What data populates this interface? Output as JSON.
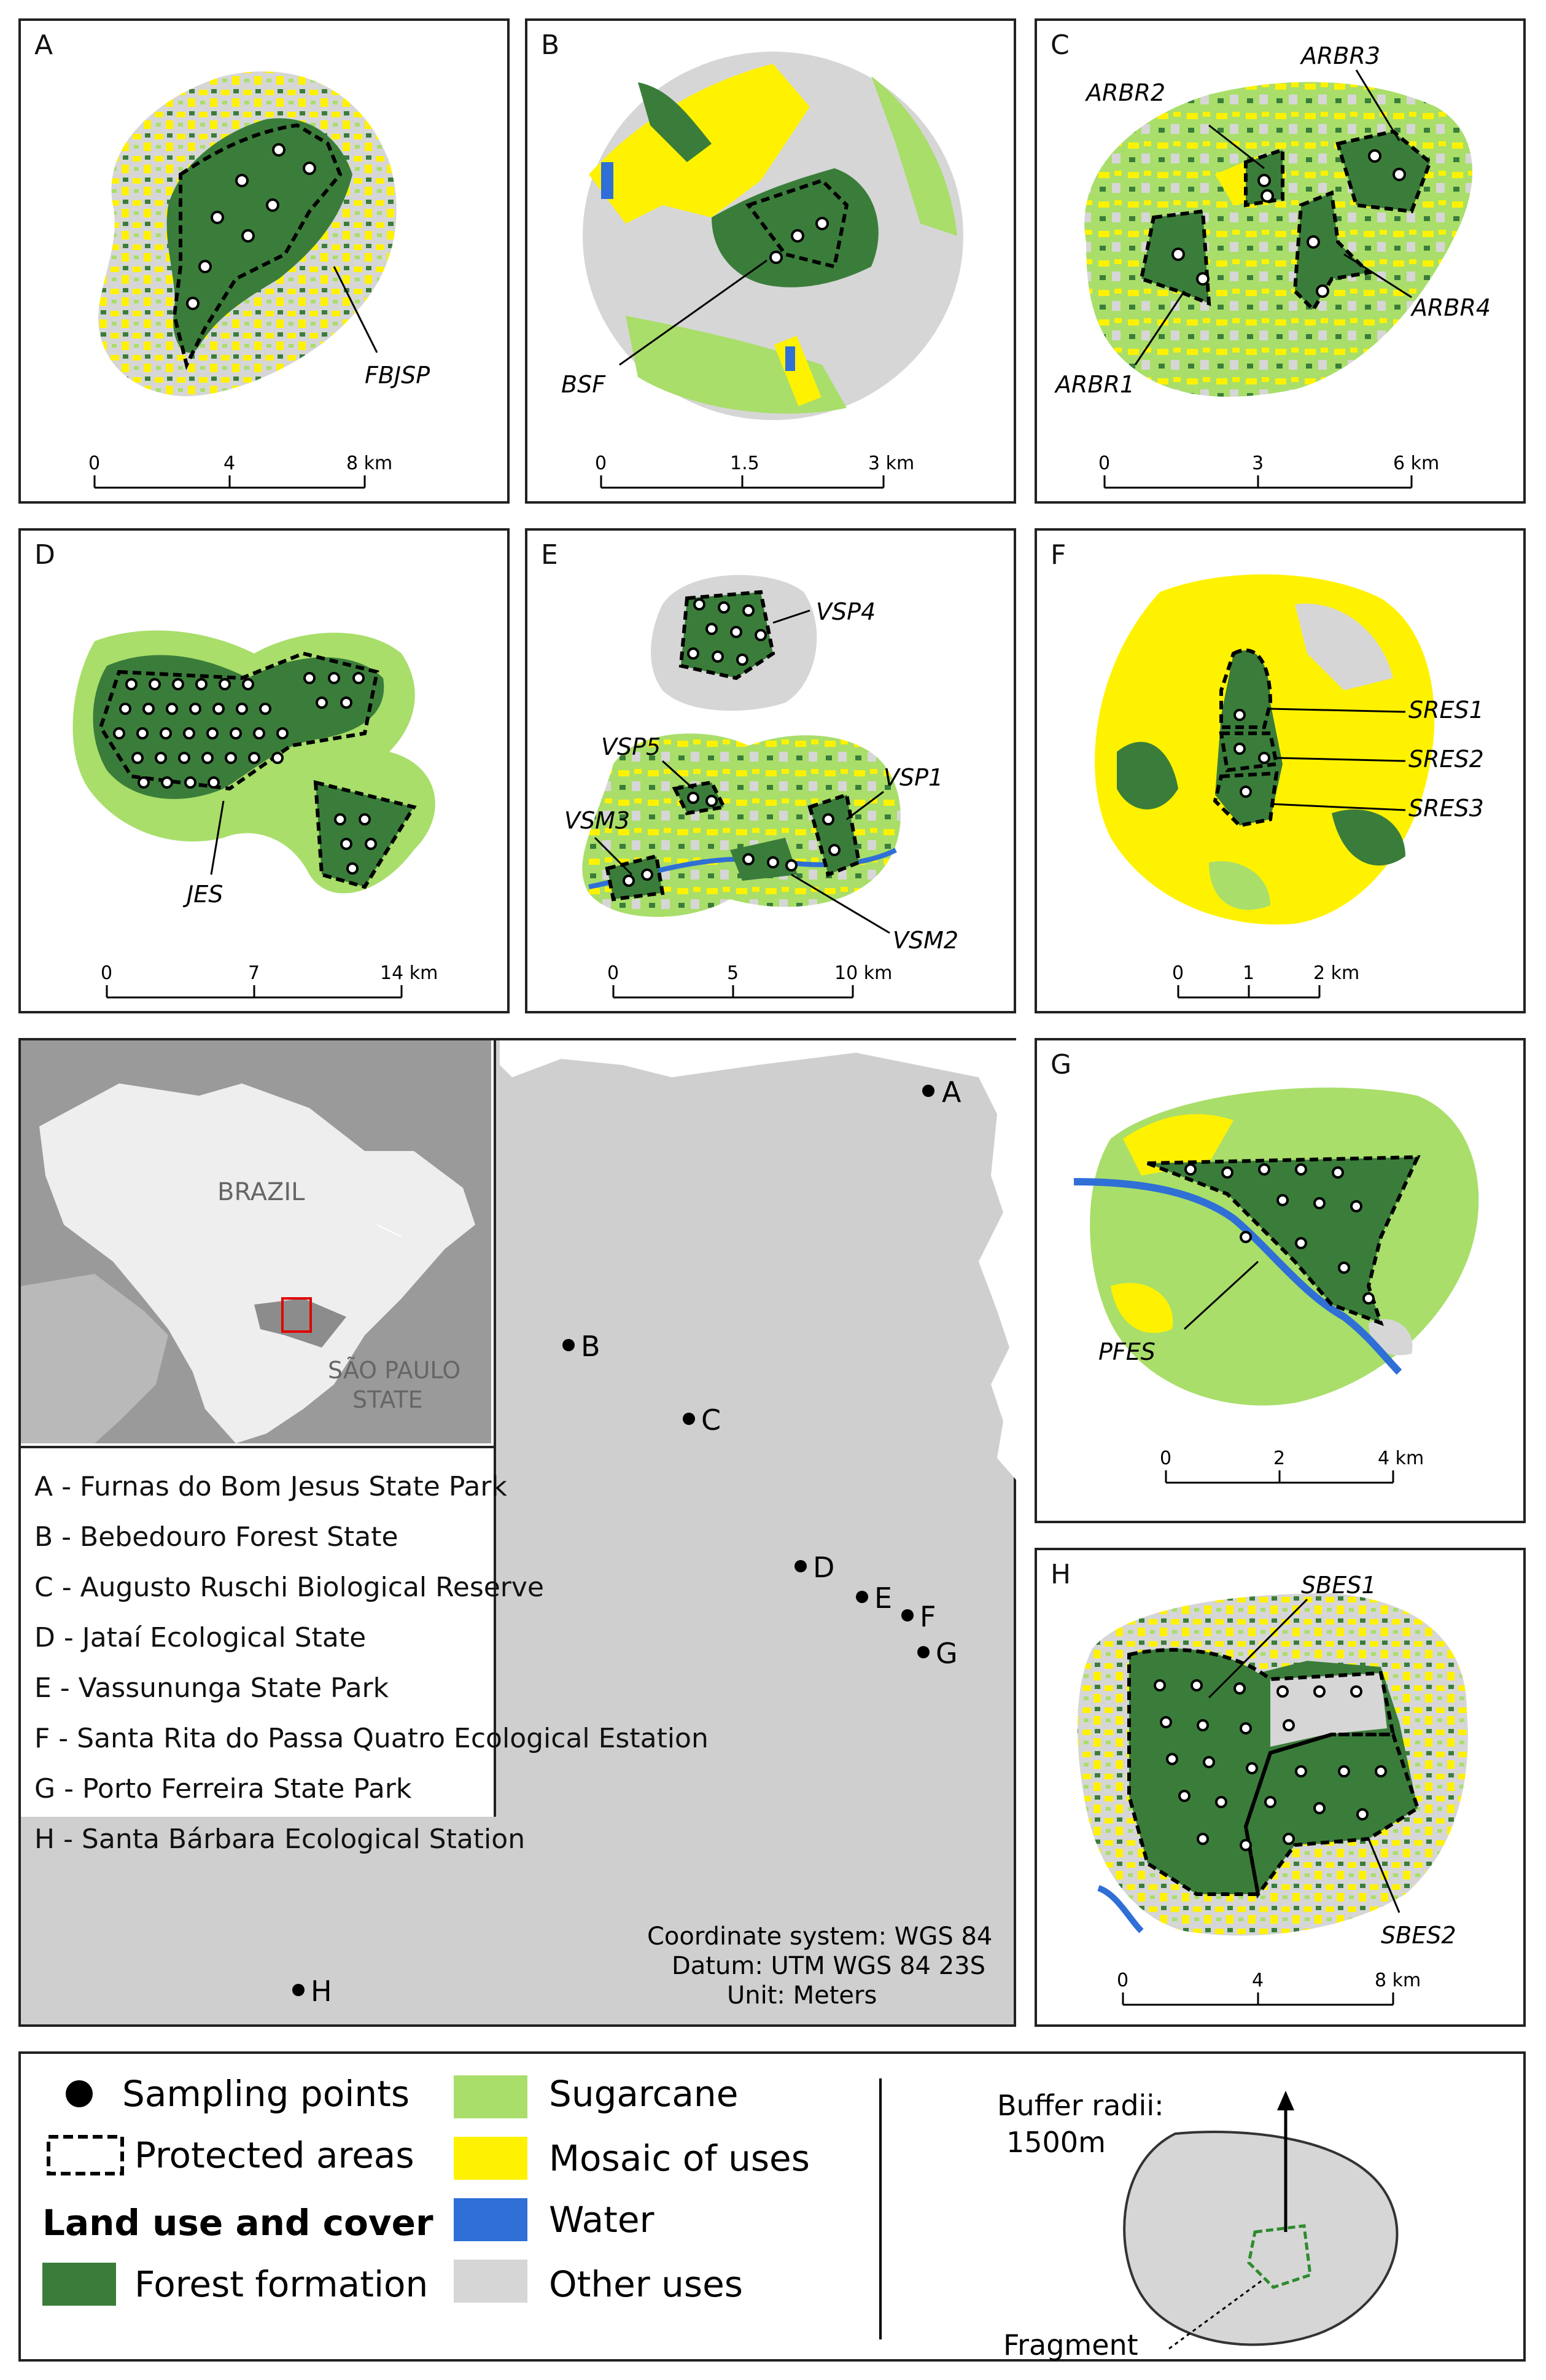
{
  "panels": {
    "A": {
      "letter": "A",
      "names": [
        "FBJSP"
      ],
      "scale": [
        "0",
        "4",
        "8 km"
      ]
    },
    "B": {
      "letter": "B",
      "names": [
        "BSF"
      ],
      "scale": [
        "0",
        "1.5",
        "3 km"
      ]
    },
    "C": {
      "letter": "C",
      "names": [
        "ARBR3",
        "ARBR2",
        "ARBR4",
        "ARBR1"
      ],
      "scale": [
        "0",
        "3",
        "6 km"
      ]
    },
    "D": {
      "letter": "D",
      "names": [
        "JES"
      ],
      "scale": [
        "0",
        "7",
        "14 km"
      ]
    },
    "E": {
      "letter": "E",
      "names": [
        "VSP4",
        "VSP5",
        "VSP1",
        "VSM3",
        "VSM2"
      ],
      "scale": [
        "0",
        "5",
        "10 km"
      ]
    },
    "F": {
      "letter": "F",
      "names": [
        "SRES1",
        "SRES2",
        "SRES3"
      ],
      "scale": [
        "0",
        "1",
        "2 km"
      ]
    },
    "G": {
      "letter": "G",
      "names": [
        "PFES"
      ],
      "scale": [
        "0",
        "2",
        "4 km"
      ]
    },
    "H": {
      "letter": "H",
      "names": [
        "SBES1",
        "SBES2"
      ],
      "scale": [
        "0",
        "4",
        "8 km"
      ]
    }
  },
  "overview": {
    "inset": {
      "country": "BRAZIL",
      "state_line1": "SÃO PAULO",
      "state_line2": "STATE"
    },
    "sites": [
      {
        "code": "A",
        "name": "A - Furnas do Bom Jesus State Park"
      },
      {
        "code": "B",
        "name": "B - Bebedouro Forest State"
      },
      {
        "code": "C",
        "name": "C - Augusto Ruschi Biological Reserve"
      },
      {
        "code": "D",
        "name": "D - Jataí Ecological State"
      },
      {
        "code": "E",
        "name": "E - Vassununga State Park"
      },
      {
        "code": "F",
        "name": "F - Santa Rita do Passa Quatro Ecological Estation"
      },
      {
        "code": "G",
        "name": "G - Porto Ferreira State Park"
      },
      {
        "code": "H",
        "name": "H - Santa Bárbara Ecological Station"
      }
    ],
    "crs": [
      "Coordinate system: WGS 84",
      "Datum: UTM WGS 84 23S",
      "Unit: Meters"
    ]
  },
  "legend": {
    "sampling_points": "Sampling points",
    "protected_areas": "Protected areas",
    "land_use_title": "Land use and cover",
    "forest": "Forest formation",
    "sugarcane": "Sugarcane",
    "mosaic": "Mosaic of uses",
    "water": "Water",
    "other": "Other uses",
    "buffer_line1": "Buffer radii:",
    "buffer_line2": "1500m",
    "fragment": "Fragment"
  },
  "colors": {
    "forest": "#3a7d3a",
    "sugarcane": "#a9de6a",
    "mosaic": "#fff200",
    "water": "#2f6fd6",
    "other": "#d6d6d6",
    "inset_selected_state": "#8c8c8c",
    "inset_marker": "#e00000"
  }
}
